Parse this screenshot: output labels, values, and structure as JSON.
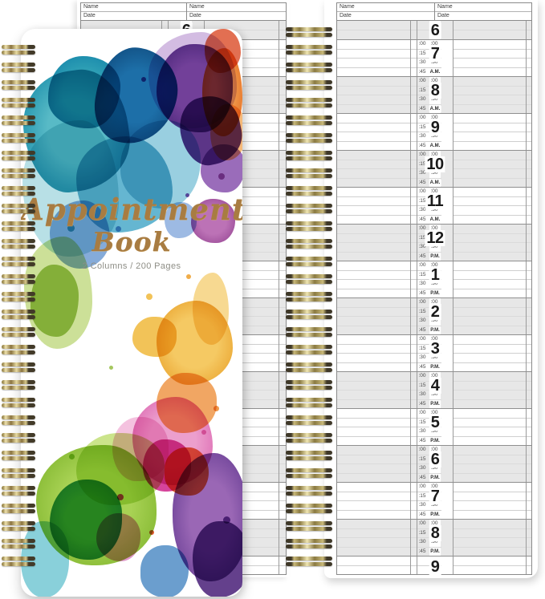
{
  "product": {
    "cover": {
      "title_line1": "Appointment",
      "title_line2": "Book",
      "subtitle": "2 Columns / 200 Pages"
    },
    "binding": {
      "left_coil_count": 30,
      "middle_coil_count": 31
    }
  },
  "palette": {
    "wire_gold": "#bda55e",
    "title_gold": "#a87c42",
    "subtitle_gray": "#8e8e86",
    "row_line": "#cfcfcf",
    "shaded_block": "#e7e7e7",
    "block_border": "#8f8f8f"
  },
  "page": {
    "header": {
      "name_label": "Name",
      "date_label": "Date"
    },
    "minute_labels": [
      ":00",
      ":15",
      ":30",
      ":45"
    ],
    "top_partial_hour": {
      "hour": "6",
      "shaded": true
    },
    "hour_blocks": [
      {
        "hour": "7",
        "meridiem": "A.M.",
        "shaded": false
      },
      {
        "hour": "8",
        "meridiem": "A.M.",
        "shaded": true
      },
      {
        "hour": "9",
        "meridiem": "A.M.",
        "shaded": false
      },
      {
        "hour": "10",
        "meridiem": "A.M.",
        "shaded": true
      },
      {
        "hour": "11",
        "meridiem": "A.M.",
        "shaded": false
      },
      {
        "hour": "12",
        "meridiem": "P.M.",
        "shaded": true
      },
      {
        "hour": "1",
        "meridiem": "P.M.",
        "shaded": false
      },
      {
        "hour": "2",
        "meridiem": "P.M.",
        "shaded": true
      },
      {
        "hour": "3",
        "meridiem": "P.M.",
        "shaded": false
      },
      {
        "hour": "4",
        "meridiem": "P.M.",
        "shaded": true
      },
      {
        "hour": "5",
        "meridiem": "P.M.",
        "shaded": false
      },
      {
        "hour": "6",
        "meridiem": "P.M.",
        "shaded": true
      },
      {
        "hour": "7",
        "meridiem": "P.M.",
        "shaded": false
      },
      {
        "hour": "8",
        "meridiem": "P.M.",
        "shaded": true
      }
    ],
    "bottom_partial_hour": {
      "hour": "9",
      "shaded": false
    }
  }
}
